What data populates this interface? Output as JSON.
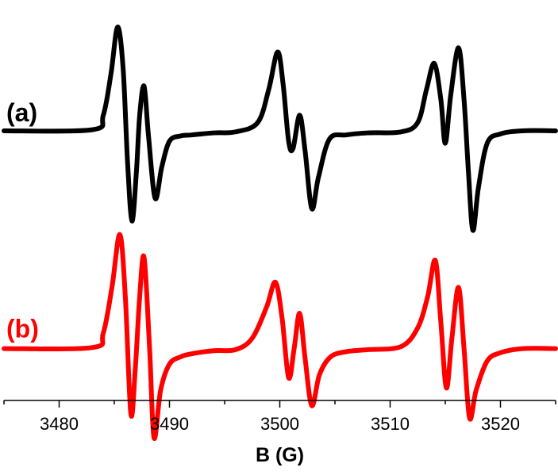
{
  "chart_data": {
    "type": "line",
    "title": "",
    "xlabel": "B (G)",
    "ylabel": "",
    "xlim": [
      3475,
      3525
    ],
    "ylim": [
      -2.6,
      1.2
    ],
    "x_ticks": [
      3480,
      3490,
      3500,
      3510,
      3520
    ],
    "grid": false,
    "legend": "none",
    "series": [
      {
        "name": "(a)",
        "color": "#000000",
        "baseline": 0,
        "points": [
          [
            3475.0,
            0.0
          ],
          [
            3483.0,
            0.01
          ],
          [
            3484.0,
            0.15
          ],
          [
            3484.7,
            0.55
          ],
          [
            3485.3,
            1.0
          ],
          [
            3485.8,
            0.6
          ],
          [
            3486.2,
            -0.3
          ],
          [
            3486.6,
            -0.87
          ],
          [
            3487.0,
            -0.4
          ],
          [
            3487.3,
            0.15
          ],
          [
            3487.7,
            0.43
          ],
          [
            3488.1,
            -0.05
          ],
          [
            3488.7,
            -0.65
          ],
          [
            3489.3,
            -0.35
          ],
          [
            3490.0,
            -0.1
          ],
          [
            3491.0,
            -0.05
          ],
          [
            3492.0,
            -0.04
          ],
          [
            3494.0,
            -0.02
          ],
          [
            3496.0,
            -0.01
          ],
          [
            3498.0,
            0.08
          ],
          [
            3499.0,
            0.4
          ],
          [
            3499.8,
            0.76
          ],
          [
            3500.3,
            0.45
          ],
          [
            3500.8,
            -0.1
          ],
          [
            3501.2,
            -0.17
          ],
          [
            3501.8,
            0.15
          ],
          [
            3502.3,
            -0.2
          ],
          [
            3502.9,
            -0.75
          ],
          [
            3503.5,
            -0.45
          ],
          [
            3504.5,
            -0.08
          ],
          [
            3506.0,
            -0.04
          ],
          [
            3508.0,
            -0.02
          ],
          [
            3511.0,
            -0.01
          ],
          [
            3512.5,
            0.08
          ],
          [
            3513.3,
            0.4
          ],
          [
            3514.0,
            0.65
          ],
          [
            3514.6,
            0.3
          ],
          [
            3515.0,
            -0.12
          ],
          [
            3515.5,
            0.35
          ],
          [
            3516.2,
            0.8
          ],
          [
            3516.7,
            0.3
          ],
          [
            3517.1,
            -0.4
          ],
          [
            3517.5,
            -0.96
          ],
          [
            3518.0,
            -0.55
          ],
          [
            3518.8,
            -0.12
          ],
          [
            3520.0,
            -0.03
          ],
          [
            3522.0,
            0.0
          ],
          [
            3525.0,
            0.0
          ]
        ]
      },
      {
        "name": "(b)",
        "color": "#ff0000",
        "baseline": -2.1,
        "points": [
          [
            3475.0,
            -2.1
          ],
          [
            3483.0,
            -2.09
          ],
          [
            3484.0,
            -1.95
          ],
          [
            3484.8,
            -1.5
          ],
          [
            3485.5,
            -1.0
          ],
          [
            3486.0,
            -1.6
          ],
          [
            3486.5,
            -2.73
          ],
          [
            3486.9,
            -2.3
          ],
          [
            3487.3,
            -1.6
          ],
          [
            3487.7,
            -1.22
          ],
          [
            3488.2,
            -2.1
          ],
          [
            3488.6,
            -2.96
          ],
          [
            3489.2,
            -2.5
          ],
          [
            3490.0,
            -2.25
          ],
          [
            3491.0,
            -2.18
          ],
          [
            3492.0,
            -2.15
          ],
          [
            3494.0,
            -2.12
          ],
          [
            3496.0,
            -2.11
          ],
          [
            3497.5,
            -2.0
          ],
          [
            3498.8,
            -1.7
          ],
          [
            3499.6,
            -1.46
          ],
          [
            3500.2,
            -1.8
          ],
          [
            3500.8,
            -2.38
          ],
          [
            3501.3,
            -2.1
          ],
          [
            3501.8,
            -1.76
          ],
          [
            3502.3,
            -2.2
          ],
          [
            3502.9,
            -2.65
          ],
          [
            3503.6,
            -2.35
          ],
          [
            3504.6,
            -2.18
          ],
          [
            3506.0,
            -2.13
          ],
          [
            3508.0,
            -2.11
          ],
          [
            3511.0,
            -2.08
          ],
          [
            3512.5,
            -1.9
          ],
          [
            3513.4,
            -1.6
          ],
          [
            3514.1,
            -1.25
          ],
          [
            3514.6,
            -1.85
          ],
          [
            3515.1,
            -2.48
          ],
          [
            3515.6,
            -2.0
          ],
          [
            3516.2,
            -1.51
          ],
          [
            3516.7,
            -2.1
          ],
          [
            3517.2,
            -2.77
          ],
          [
            3517.8,
            -2.5
          ],
          [
            3518.8,
            -2.22
          ],
          [
            3520.0,
            -2.14
          ],
          [
            3522.0,
            -2.1
          ],
          [
            3525.0,
            -2.1
          ]
        ]
      }
    ]
  }
}
